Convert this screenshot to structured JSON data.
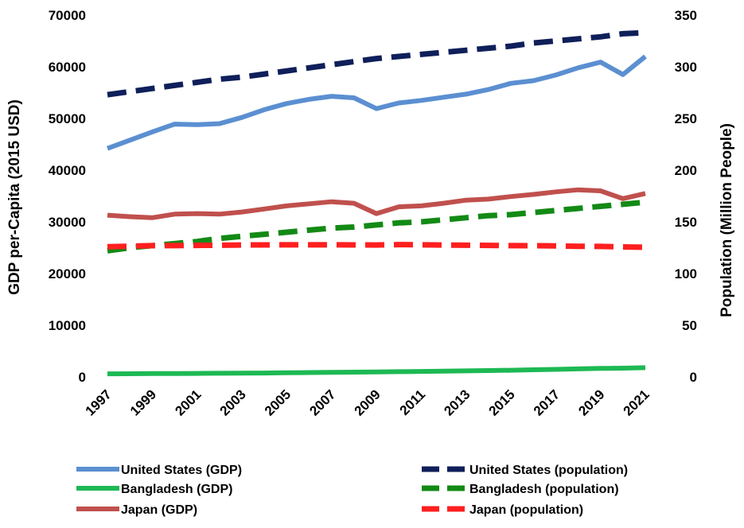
{
  "chart_data": {
    "type": "line",
    "title": "",
    "xlabel": "",
    "ylabel_left": "GDP per-Capita (2015 USD)",
    "ylabel_right": "Population (Million People)",
    "x": [
      1997,
      1998,
      1999,
      2000,
      2001,
      2002,
      2003,
      2004,
      2005,
      2006,
      2007,
      2008,
      2009,
      2010,
      2011,
      2012,
      2013,
      2014,
      2015,
      2016,
      2017,
      2018,
      2019,
      2020,
      2021
    ],
    "x_tick_labels": [
      "1997",
      "1999",
      "2001",
      "2003",
      "2005",
      "2007",
      "2009",
      "2011",
      "2013",
      "2015",
      "2017",
      "2019",
      "2021"
    ],
    "ylim_left": [
      0,
      70000
    ],
    "yticks_left": [
      "0",
      "10000",
      "20000",
      "30000",
      "40000",
      "50000",
      "60000",
      "70000"
    ],
    "ylim_right": [
      0,
      350
    ],
    "yticks_right": [
      "0",
      "50",
      "100",
      "150",
      "200",
      "250",
      "300",
      "350"
    ],
    "grid": false,
    "legend_position": "bottom",
    "series": [
      {
        "name": "United States (GDP)",
        "axis": "left",
        "style": "solid",
        "color": "#5b8fd1",
        "values": [
          44200,
          45800,
          47400,
          48900,
          48800,
          49000,
          50200,
          51700,
          52900,
          53700,
          54300,
          54000,
          51900,
          53000,
          53500,
          54100,
          54700,
          55600,
          56800,
          57300,
          58400,
          59800,
          60900,
          58500,
          62000
        ]
      },
      {
        "name": "Bangladesh (GDP)",
        "axis": "left",
        "style": "solid",
        "color": "#1db954",
        "values": [
          600,
          620,
          640,
          660,
          680,
          700,
          720,
          760,
          800,
          840,
          880,
          920,
          960,
          1010,
          1060,
          1110,
          1170,
          1230,
          1300,
          1380,
          1460,
          1550,
          1650,
          1690,
          1780
        ]
      },
      {
        "name": "Japan (GDP)",
        "axis": "left",
        "style": "solid",
        "color": "#c0504d",
        "values": [
          31300,
          31000,
          30800,
          31500,
          31600,
          31500,
          31900,
          32500,
          33100,
          33500,
          33900,
          33600,
          31600,
          32900,
          33100,
          33600,
          34200,
          34400,
          34900,
          35300,
          35800,
          36200,
          36000,
          34500,
          35500
        ]
      },
      {
        "name": "United States (population)",
        "axis": "right",
        "style": "dashed",
        "color": "#0f1f5a",
        "values": [
          273,
          276,
          279,
          282,
          285,
          288,
          290,
          293,
          296,
          299,
          302,
          305,
          308,
          310,
          312,
          314,
          316,
          318,
          320,
          323,
          325,
          327,
          329,
          332,
          333
        ]
      },
      {
        "name": "Bangladesh (population)",
        "axis": "right",
        "style": "dashed",
        "color": "#138a15",
        "values": [
          122,
          125,
          127,
          129,
          131,
          134,
          136,
          138,
          140,
          142,
          144,
          145,
          147,
          149,
          150,
          152,
          154,
          156,
          157,
          159,
          161,
          163,
          165,
          167,
          169
        ]
      },
      {
        "name": "Japan (population)",
        "axis": "right",
        "style": "dashed",
        "color": "#ff1f1f",
        "values": [
          126,
          126.5,
          127,
          127,
          127.2,
          127.4,
          127.6,
          127.7,
          127.8,
          127.8,
          127.8,
          127.7,
          127.6,
          128,
          127.8,
          127.6,
          127.4,
          127.2,
          127,
          126.9,
          126.7,
          126.4,
          126.2,
          125.8,
          125.5
        ]
      }
    ]
  }
}
